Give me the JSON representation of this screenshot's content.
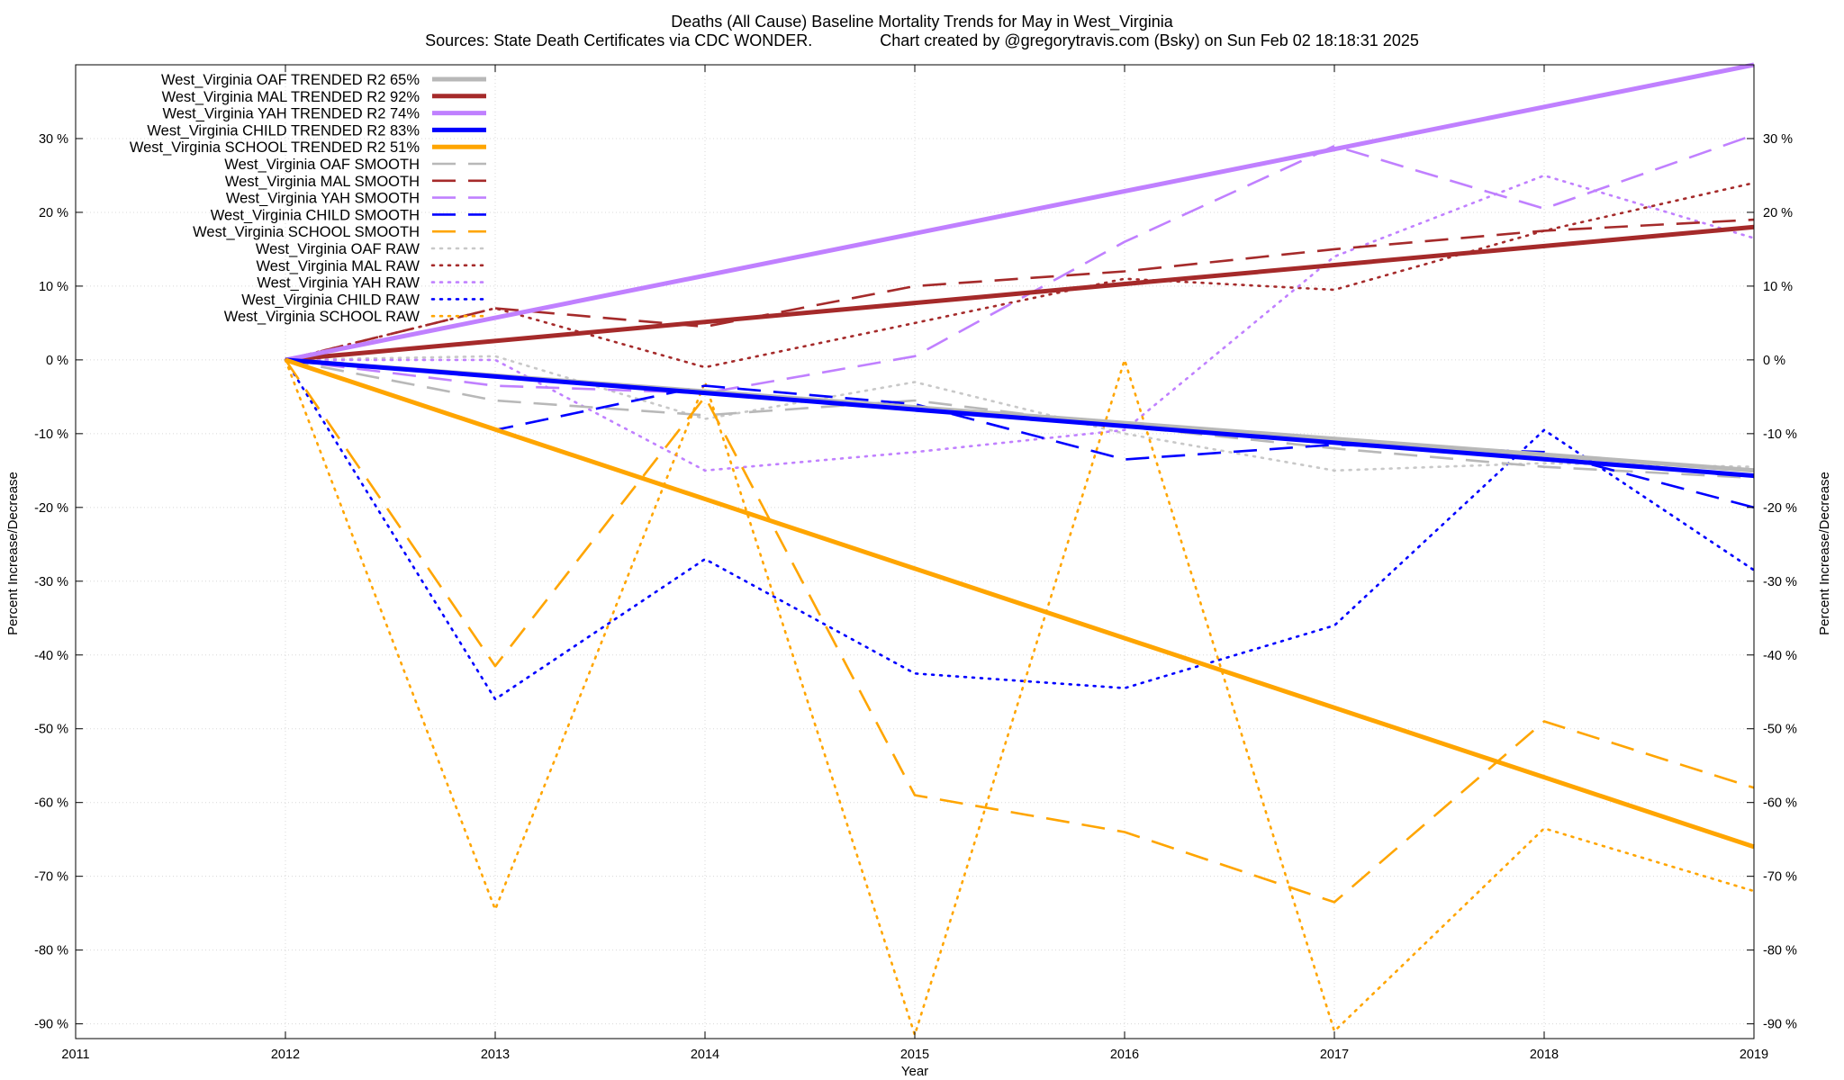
{
  "chart_data": {
    "type": "line",
    "title": "Deaths (All Cause)  Baseline Mortality Trends for May in West_Virginia",
    "subtitle": "Sources: State Death Certificates via CDC WONDER.               Chart created by @gregorytravis.com (Bsky) on Sun Feb 02 18:18:31 2025",
    "xlabel": "Year",
    "ylabel": "Percent Increase/Decrease",
    "y2label": "Percent Increase/Decrease",
    "xlim": [
      2011,
      2019
    ],
    "ylim": [
      -92,
      40
    ],
    "x_ticks": [
      "2011",
      "2012",
      "2013",
      "2014",
      "2015",
      "2016",
      "2017",
      "2018",
      "2019"
    ],
    "x_tick_values": [
      2011,
      2012,
      2013,
      2014,
      2015,
      2016,
      2017,
      2018,
      2019
    ],
    "y_ticks": [
      "30 %",
      "20 %",
      "10 %",
      "0 %",
      "-10 %",
      "-20 %",
      "-30 %",
      "-40 %",
      "-50 %",
      "-60 %",
      "-70 %",
      "-80 %",
      "-90 %"
    ],
    "y_tick_values": [
      30,
      20,
      10,
      0,
      -10,
      -20,
      -30,
      -40,
      -50,
      -60,
      -70,
      -80,
      -90
    ],
    "grid": true,
    "legend_position": "top-left",
    "x": [
      2012,
      2013,
      2014,
      2015,
      2016,
      2017,
      2018,
      2019
    ],
    "series": [
      {
        "name": "West_Virginia OAF TRENDED R2  65%",
        "color": "#b8b8b8",
        "style": "solid",
        "x": [
          2012,
          2019
        ],
        "values": [
          0,
          -15
        ]
      },
      {
        "name": "West_Virginia MAL TRENDED R2  92%",
        "color": "#a52a2a",
        "style": "solid",
        "x": [
          2012,
          2019
        ],
        "values": [
          0,
          18
        ]
      },
      {
        "name": "West_Virginia YAH TRENDED R2  74%",
        "color": "#c080ff",
        "style": "solid",
        "x": [
          2012,
          2019
        ],
        "values": [
          0,
          40
        ]
      },
      {
        "name": "West_Virginia CHILD TRENDED R2  83%",
        "color": "#0000ff",
        "style": "solid",
        "x": [
          2012,
          2019
        ],
        "values": [
          0,
          -15.7
        ]
      },
      {
        "name": "West_Virginia SCHOOL TRENDED R2  51%",
        "color": "#ffa500",
        "style": "solid",
        "x": [
          2012,
          2019
        ],
        "values": [
          0,
          -66
        ]
      },
      {
        "name": "West_Virginia OAF SMOOTH",
        "color": "#b8b8b8",
        "style": "dashed",
        "values": [
          0,
          -5.5,
          -7.5,
          -5.5,
          -9,
          -12,
          -14.5,
          -16
        ]
      },
      {
        "name": "West_Virginia MAL SMOOTH",
        "color": "#a52a2a",
        "style": "dashed",
        "values": [
          0,
          7,
          4.5,
          10,
          12,
          15,
          17.5,
          19
        ]
      },
      {
        "name": "West_Virginia YAH SMOOTH",
        "color": "#c080ff",
        "style": "dashed",
        "values": [
          0,
          -3.5,
          -4.5,
          0.5,
          16,
          29,
          20.5,
          30.5
        ]
      },
      {
        "name": "West_Virginia CHILD SMOOTH",
        "color": "#0000ff",
        "style": "dashed",
        "values": [
          0,
          -9.5,
          -3.5,
          -6,
          -13.5,
          -11.5,
          -12.5,
          -20
        ]
      },
      {
        "name": "West_Virginia SCHOOL SMOOTH",
        "color": "#ffa500",
        "style": "dashed",
        "values": [
          0,
          -41.5,
          -5,
          -59,
          -64,
          -73.5,
          -49,
          -58
        ]
      },
      {
        "name": "West_Virginia OAF RAW",
        "color": "#c8c8c8",
        "style": "dotted",
        "values": [
          0,
          0.5,
          -8,
          -3,
          -10,
          -15,
          -14,
          -14.5
        ]
      },
      {
        "name": "West_Virginia MAL RAW",
        "color": "#a52a2a",
        "style": "dotted",
        "values": [
          0,
          7,
          -1,
          5,
          11,
          9.5,
          17.5,
          24
        ]
      },
      {
        "name": "West_Virginia YAH RAW",
        "color": "#c080ff",
        "style": "dotted",
        "values": [
          0,
          0,
          -15,
          -12.5,
          -9.5,
          14,
          25,
          16.5
        ]
      },
      {
        "name": "West_Virginia CHILD RAW",
        "color": "#0000ff",
        "style": "dotted",
        "values": [
          0,
          -46,
          -27,
          -42.5,
          -44.5,
          -36,
          -9.5,
          -28.5
        ]
      },
      {
        "name": "West_Virginia SCHOOL RAW",
        "color": "#ffa500",
        "style": "dotted",
        "values": [
          0,
          -74.5,
          -3,
          -91.5,
          0,
          -91,
          -63.5,
          -72
        ]
      }
    ]
  }
}
